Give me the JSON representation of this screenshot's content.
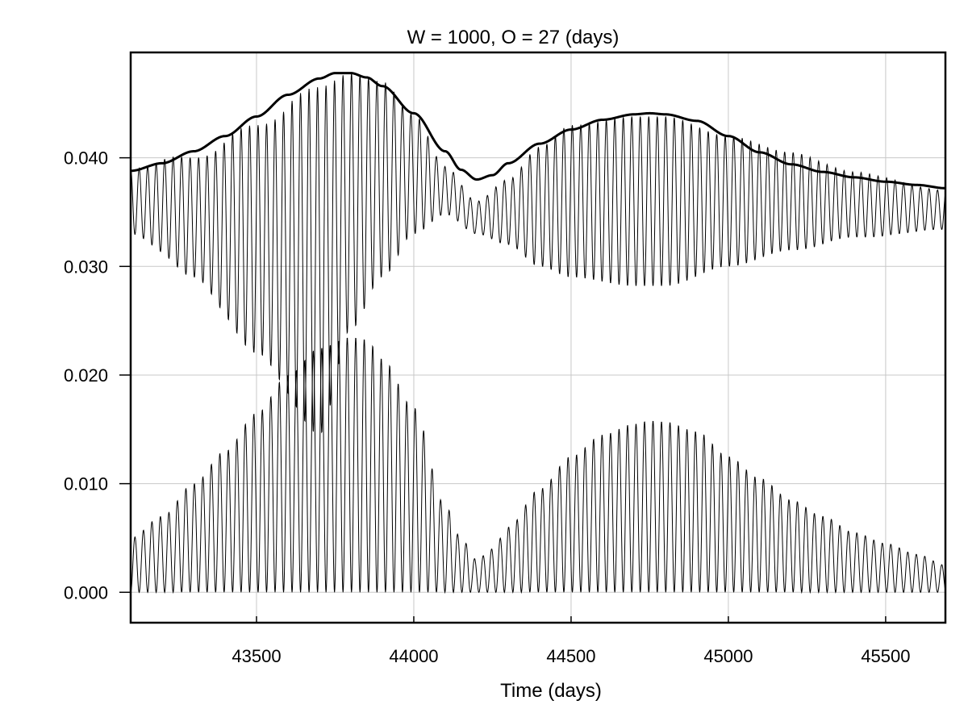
{
  "chart_data": {
    "type": "line",
    "title": "W = 1000, O = 27  (days)",
    "xlabel": "Time (days)",
    "ylabel": "",
    "xlim": [
      43100,
      45690
    ],
    "ylim": [
      -0.0028,
      0.0497
    ],
    "grid": true,
    "x_ticks": [
      43500,
      44000,
      44500,
      45000,
      45500
    ],
    "x_tick_labels": [
      "43500",
      "44000",
      "44500",
      "45000",
      "45500"
    ],
    "y_ticks": [
      0.0,
      0.01,
      0.02,
      0.03,
      0.04
    ],
    "y_tick_labels": [
      "0.000",
      "0.010",
      "0.020",
      "0.030",
      "0.040"
    ],
    "oscillation_period_days": 27,
    "series": [
      {
        "role": "upper-oscillation",
        "center": [
          [
            43100,
            0.036
          ],
          [
            43200,
            0.0355
          ],
          [
            43300,
            0.0345
          ],
          [
            43400,
            0.0335
          ],
          [
            43500,
            0.0325
          ],
          [
            43600,
            0.0315
          ],
          [
            43700,
            0.0305
          ],
          [
            43800,
            0.036
          ],
          [
            43900,
            0.038
          ],
          [
            44000,
            0.0385
          ],
          [
            44100,
            0.037
          ],
          [
            44200,
            0.0345
          ],
          [
            44300,
            0.035
          ],
          [
            44400,
            0.0355
          ],
          [
            44500,
            0.036
          ],
          [
            44600,
            0.036
          ],
          [
            44700,
            0.036
          ],
          [
            44800,
            0.036
          ],
          [
            44900,
            0.036
          ],
          [
            45000,
            0.036
          ],
          [
            45100,
            0.036
          ],
          [
            45200,
            0.036
          ],
          [
            45300,
            0.0358
          ],
          [
            45400,
            0.0357
          ],
          [
            45500,
            0.0355
          ],
          [
            45600,
            0.0353
          ],
          [
            45690,
            0.0352
          ]
        ],
        "amplitude": [
          [
            43100,
            0.003
          ],
          [
            43300,
            0.0055
          ],
          [
            43500,
            0.0105
          ],
          [
            43700,
            0.016
          ],
          [
            43800,
            0.0118
          ],
          [
            43900,
            0.009
          ],
          [
            44000,
            0.0055
          ],
          [
            44100,
            0.0022
          ],
          [
            44200,
            0.0015
          ],
          [
            44300,
            0.003
          ],
          [
            44400,
            0.0055
          ],
          [
            44500,
            0.007
          ],
          [
            44700,
            0.0078
          ],
          [
            44800,
            0.0078
          ],
          [
            45000,
            0.006
          ],
          [
            45200,
            0.0045
          ],
          [
            45400,
            0.003
          ],
          [
            45690,
            0.0018
          ]
        ]
      },
      {
        "role": "upper-envelope",
        "x": [
          43100,
          43200,
          43300,
          43400,
          43500,
          43600,
          43700,
          43750,
          43800,
          43850,
          43900,
          44000,
          44100,
          44150,
          44200,
          44250,
          44300,
          44400,
          44500,
          44600,
          44700,
          44750,
          44800,
          44900,
          45000,
          45100,
          45200,
          45300,
          45400,
          45500,
          45600,
          45690
        ],
        "y": [
          0.0388,
          0.0395,
          0.0406,
          0.042,
          0.0438,
          0.0458,
          0.0473,
          0.0478,
          0.0478,
          0.0474,
          0.0466,
          0.0441,
          0.0406,
          0.0389,
          0.038,
          0.0384,
          0.0395,
          0.0413,
          0.0426,
          0.0435,
          0.044,
          0.0441,
          0.044,
          0.0434,
          0.042,
          0.0405,
          0.0394,
          0.0387,
          0.0382,
          0.0378,
          0.0375,
          0.0372
        ]
      },
      {
        "role": "lower-oscillation",
        "baseline": 0.0,
        "peak": [
          [
            43100,
            0.005
          ],
          [
            43200,
            0.007
          ],
          [
            43300,
            0.01
          ],
          [
            43400,
            0.013
          ],
          [
            43500,
            0.0165
          ],
          [
            43600,
            0.02
          ],
          [
            43700,
            0.0225
          ],
          [
            43800,
            0.0235
          ],
          [
            43850,
            0.0233
          ],
          [
            43900,
            0.0215
          ],
          [
            44000,
            0.017
          ],
          [
            44100,
            0.008
          ],
          [
            44150,
            0.005
          ],
          [
            44200,
            0.003
          ],
          [
            44250,
            0.004
          ],
          [
            44300,
            0.006
          ],
          [
            44400,
            0.0095
          ],
          [
            44500,
            0.0125
          ],
          [
            44600,
            0.0145
          ],
          [
            44700,
            0.0155
          ],
          [
            44750,
            0.0158
          ],
          [
            44800,
            0.0157
          ],
          [
            44900,
            0.0148
          ],
          [
            45000,
            0.0125
          ],
          [
            45100,
            0.0105
          ],
          [
            45200,
            0.0085
          ],
          [
            45300,
            0.007
          ],
          [
            45400,
            0.0055
          ],
          [
            45500,
            0.0045
          ],
          [
            45600,
            0.0035
          ],
          [
            45690,
            0.0025
          ]
        ]
      }
    ]
  }
}
